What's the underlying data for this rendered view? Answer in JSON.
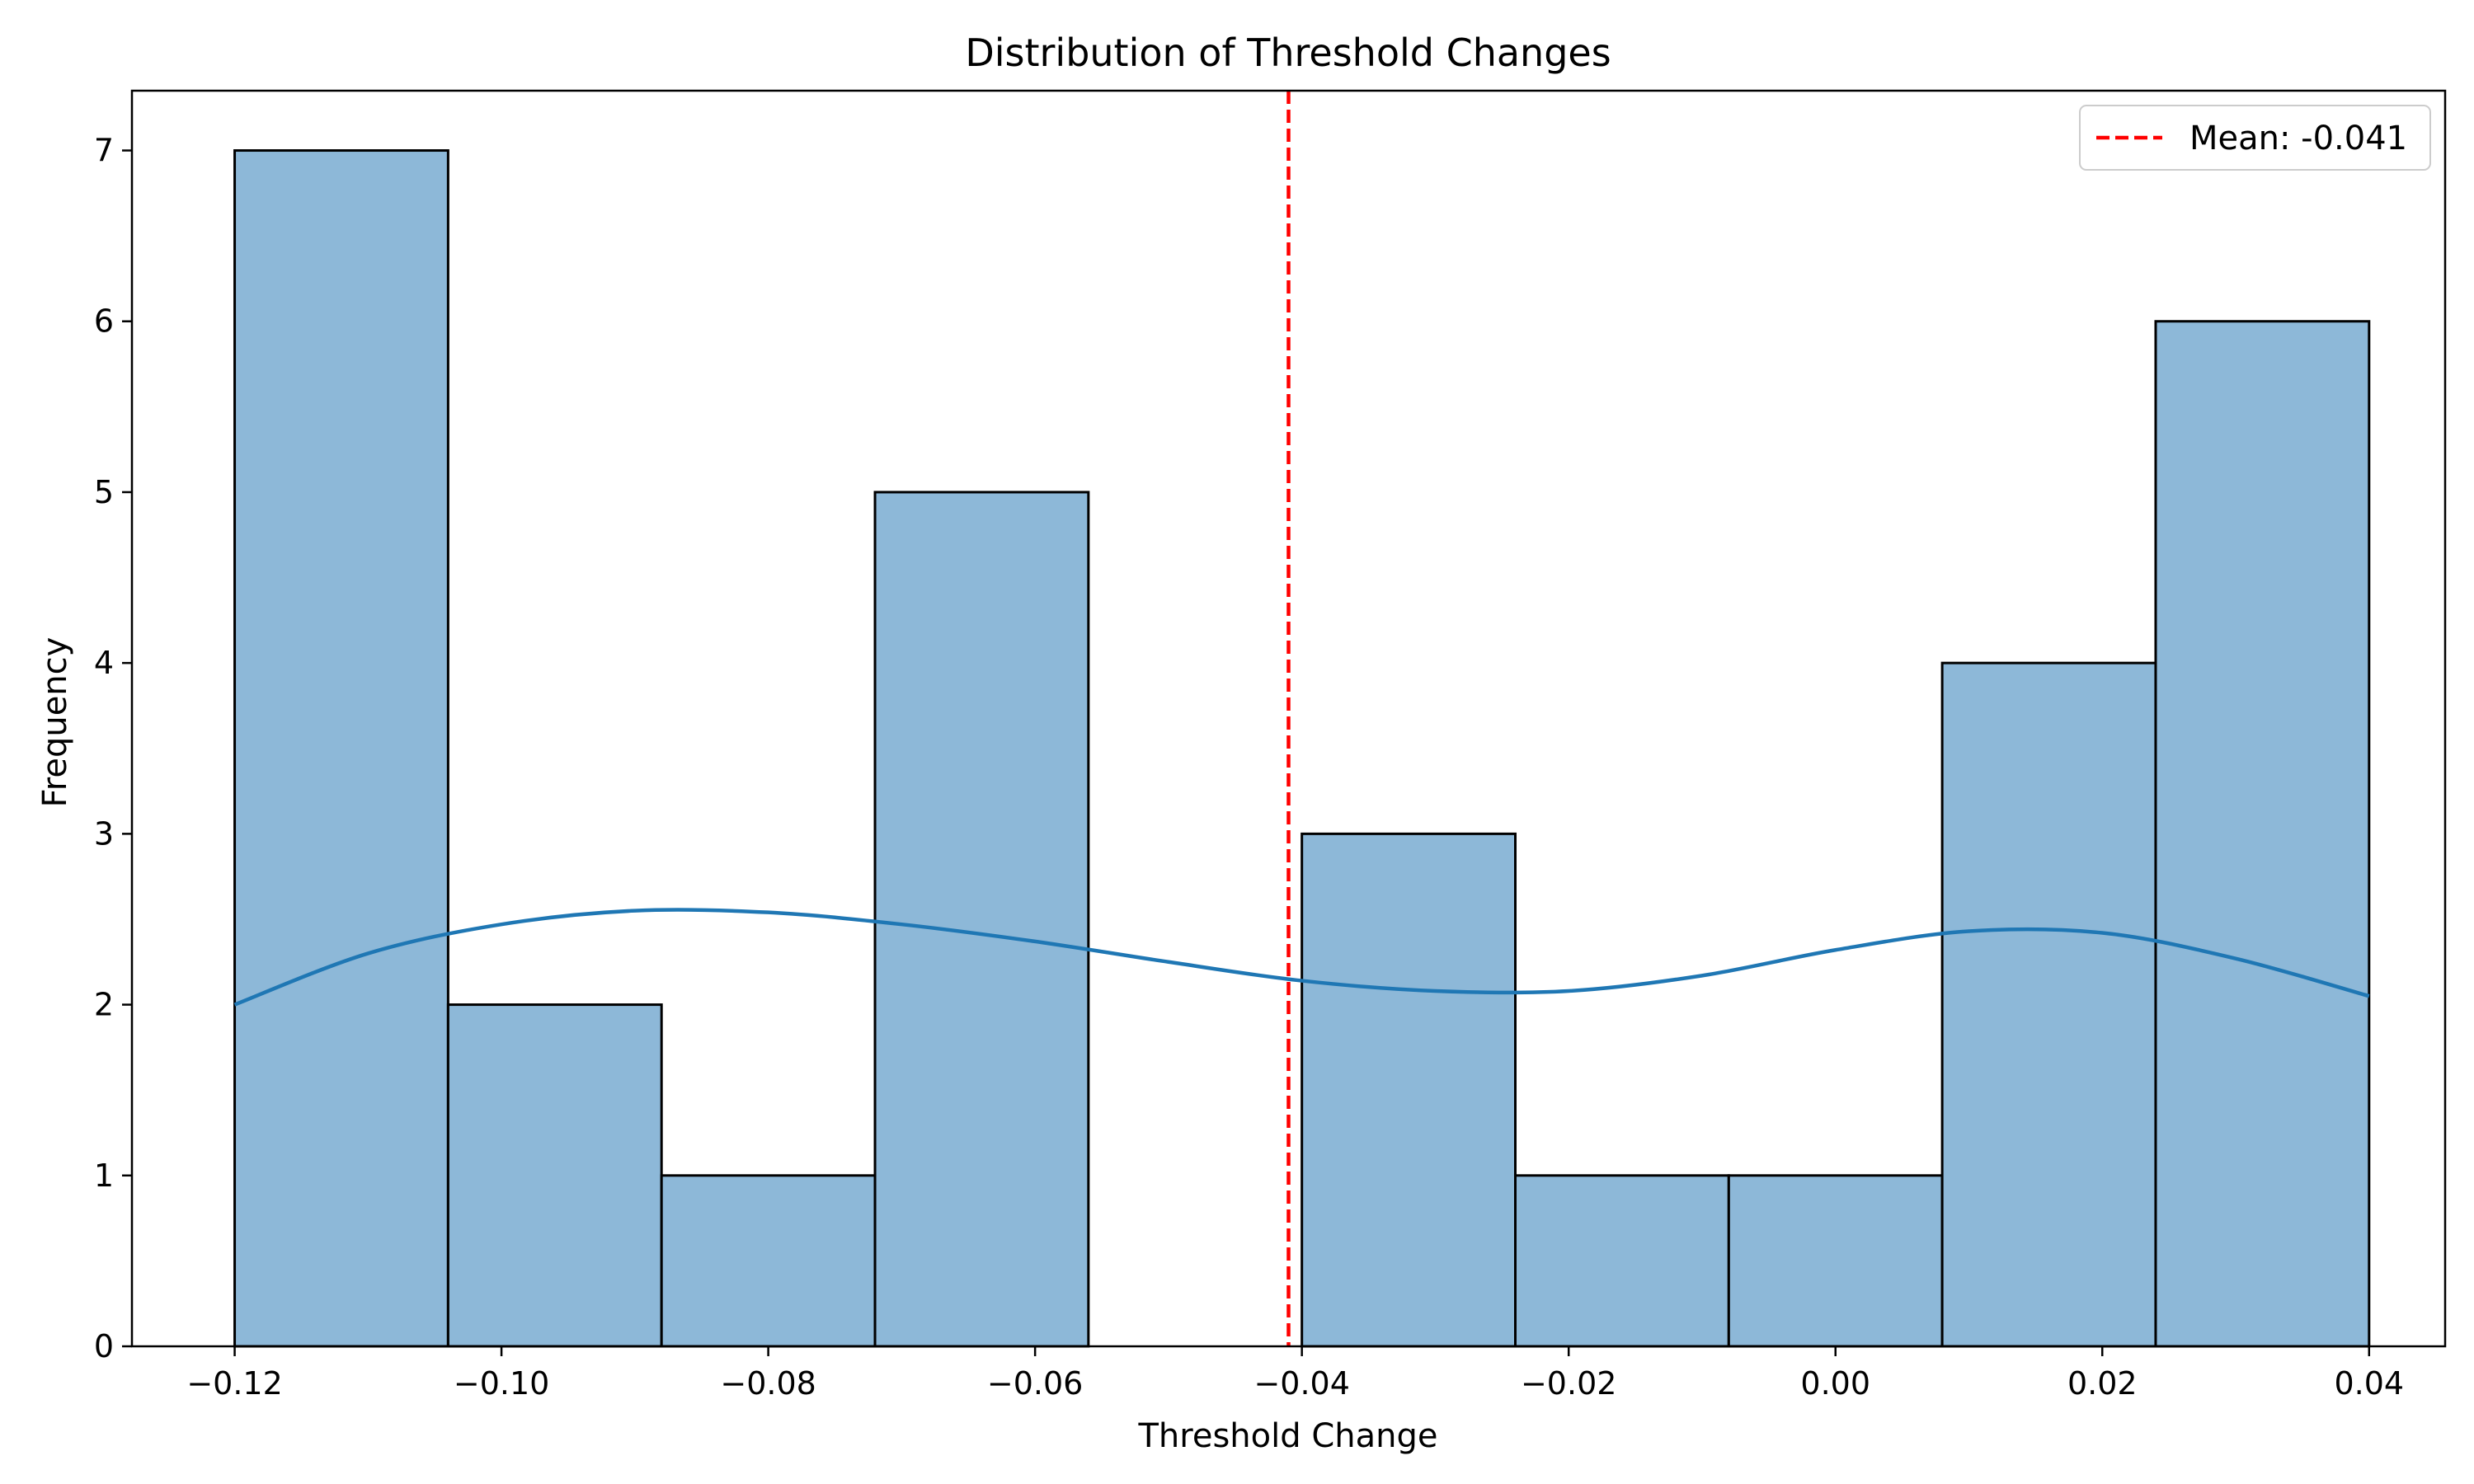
{
  "chart_data": {
    "type": "bar",
    "title": "Distribution of Threshold Changes",
    "xlabel": "Threshold Change",
    "ylabel": "Frequency",
    "xlim": [
      -0.1277,
      0.0457
    ],
    "ylim": [
      0,
      7.35
    ],
    "x_ticks": [
      -0.12,
      -0.1,
      -0.08,
      -0.06,
      -0.04,
      -0.02,
      0.0,
      0.02,
      0.04
    ],
    "x_tick_labels": [
      "−0.12",
      "−0.10",
      "−0.08",
      "−0.06",
      "−0.04",
      "−0.02",
      "0.00",
      "0.02",
      "0.04"
    ],
    "y_ticks": [
      0,
      1,
      2,
      3,
      4,
      5,
      6,
      7
    ],
    "y_tick_labels": [
      "0",
      "1",
      "2",
      "3",
      "4",
      "5",
      "6",
      "7"
    ],
    "bin_edges": [
      -0.12,
      -0.104,
      -0.088,
      -0.072,
      -0.056,
      -0.04,
      -0.024,
      -0.008,
      0.008,
      0.024,
      0.04
    ],
    "counts": [
      7,
      2,
      1,
      5,
      0,
      3,
      1,
      1,
      4,
      6
    ],
    "bar_color": "#8db8d8",
    "bar_edge_color": "#000000",
    "kde": {
      "color": "#1f77b4",
      "x": [
        -0.12,
        -0.11,
        -0.1,
        -0.09,
        -0.08,
        -0.07,
        -0.06,
        -0.05,
        -0.04,
        -0.03,
        -0.02,
        -0.01,
        0.0,
        0.01,
        0.02,
        0.03,
        0.04
      ],
      "y": [
        2.0,
        2.3,
        2.47,
        2.55,
        2.54,
        2.47,
        2.37,
        2.25,
        2.14,
        2.08,
        2.08,
        2.17,
        2.32,
        2.43,
        2.42,
        2.27,
        2.05
      ]
    },
    "mean_line": {
      "value": -0.041,
      "color": "#ff0000",
      "style": "dashed",
      "label": "Mean: -0.041"
    },
    "legend": {
      "placement": "top-right",
      "entries": [
        "Mean: -0.041"
      ]
    },
    "grid": false
  }
}
